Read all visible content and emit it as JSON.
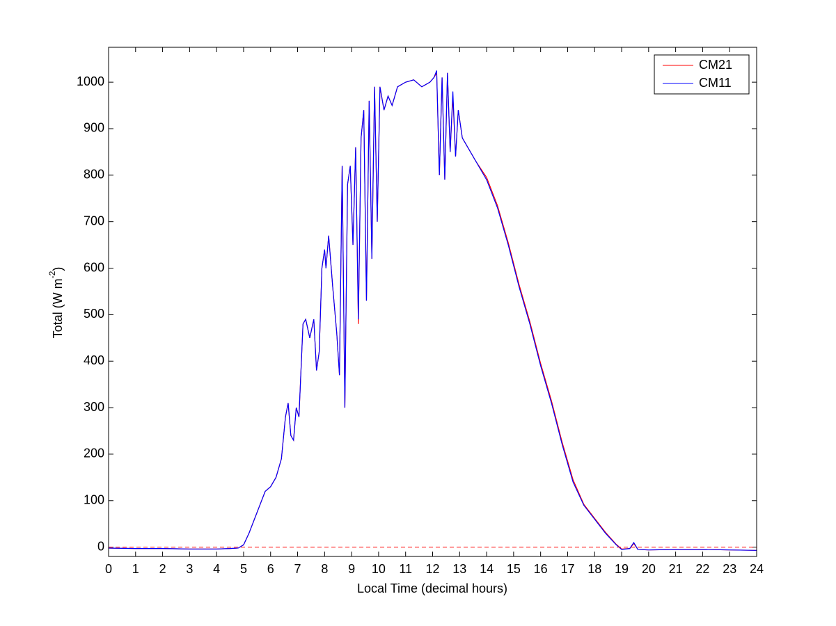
{
  "chart_data": {
    "type": "line",
    "xlabel": "Local Time (decimal hours)",
    "ylabel": {
      "text": "Total (W m",
      "superscript": "-2",
      "suffix": ")"
    },
    "xlim": [
      0,
      24
    ],
    "xticks": [
      0,
      1,
      2,
      3,
      4,
      5,
      6,
      7,
      8,
      9,
      10,
      11,
      12,
      13,
      14,
      15,
      16,
      17,
      18,
      19,
      20,
      21,
      22,
      23,
      24
    ],
    "ylim": [
      -20,
      1075
    ],
    "yticks": [
      0,
      100,
      200,
      300,
      400,
      500,
      600,
      700,
      800,
      900,
      1000
    ],
    "legend": "northeast",
    "reference_line": {
      "y": 0,
      "color": "#ff0000",
      "style": "dashed"
    },
    "x": [
      0,
      1,
      2,
      3,
      4,
      4.5,
      4.8,
      5.0,
      5.2,
      5.4,
      5.6,
      5.8,
      6.0,
      6.2,
      6.4,
      6.55,
      6.65,
      6.75,
      6.85,
      6.95,
      7.05,
      7.2,
      7.3,
      7.45,
      7.6,
      7.7,
      7.8,
      7.9,
      8.0,
      8.05,
      8.15,
      8.3,
      8.45,
      8.55,
      8.65,
      8.75,
      8.85,
      8.95,
      9.05,
      9.15,
      9.25,
      9.35,
      9.45,
      9.55,
      9.65,
      9.75,
      9.85,
      9.95,
      10.05,
      10.2,
      10.35,
      10.5,
      10.7,
      11.0,
      11.3,
      11.6,
      11.9,
      12.05,
      12.15,
      12.25,
      12.35,
      12.45,
      12.55,
      12.65,
      12.75,
      12.85,
      12.95,
      13.1,
      13.3,
      13.6,
      14.0,
      14.4,
      14.8,
      15.2,
      15.6,
      16.0,
      16.4,
      16.8,
      17.2,
      17.6,
      18.0,
      18.4,
      18.8,
      19.0,
      19.3,
      19.45,
      19.6,
      20,
      21,
      22,
      23,
      24
    ],
    "series": [
      {
        "name": "CM21",
        "color": "#ff0000",
        "values": [
          -2,
          -3,
          -3,
          -4,
          -4,
          -3,
          -2,
          5,
          30,
          60,
          90,
          120,
          130,
          150,
          190,
          280,
          310,
          240,
          230,
          300,
          280,
          480,
          490,
          450,
          490,
          380,
          420,
          600,
          640,
          600,
          670,
          560,
          460,
          370,
          820,
          300,
          780,
          820,
          650,
          860,
          480,
          880,
          940,
          530,
          960,
          620,
          990,
          700,
          990,
          940,
          970,
          950,
          990,
          1000,
          1005,
          990,
          1000,
          1010,
          1020,
          800,
          1010,
          790,
          1020,
          850,
          970,
          840,
          940,
          880,
          860,
          830,
          795,
          735,
          655,
          565,
          485,
          395,
          315,
          225,
          145,
          92,
          62,
          32,
          6,
          -4,
          -3,
          8,
          -5,
          -6,
          -5,
          -5,
          -6,
          -7
        ]
      },
      {
        "name": "CM11",
        "color": "#0000ff",
        "values": [
          -2,
          -3,
          -3,
          -4,
          -4,
          -3,
          -2,
          5,
          30,
          60,
          90,
          120,
          130,
          150,
          190,
          280,
          310,
          240,
          230,
          300,
          280,
          480,
          490,
          450,
          490,
          380,
          420,
          600,
          640,
          600,
          670,
          560,
          460,
          370,
          820,
          300,
          780,
          820,
          650,
          860,
          490,
          880,
          940,
          530,
          960,
          620,
          990,
          700,
          990,
          940,
          970,
          950,
          990,
          1000,
          1005,
          990,
          1000,
          1010,
          1025,
          800,
          1010,
          790,
          1020,
          850,
          980,
          840,
          940,
          880,
          860,
          830,
          790,
          730,
          650,
          560,
          480,
          390,
          310,
          220,
          140,
          90,
          60,
          30,
          5,
          -5,
          -3,
          10,
          -5,
          -6,
          -5,
          -5,
          -6,
          -7
        ]
      }
    ]
  }
}
